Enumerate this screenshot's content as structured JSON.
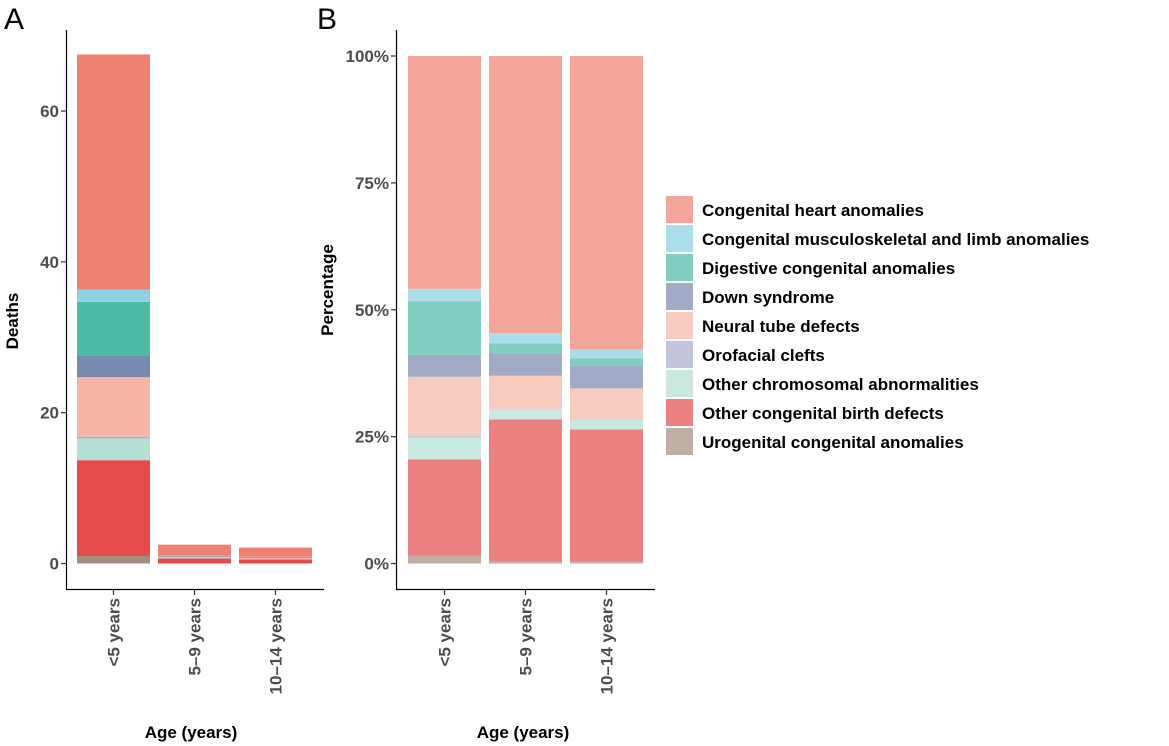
{
  "legend": [
    {
      "label": "Congenital heart anomalies",
      "color_a": "#EF8173",
      "color_b": "#F3A59A"
    },
    {
      "label": "Congenital musculoskeletal and limb anomalies",
      "color_a": "#8ED1E6",
      "color_b": "#ABDDEB"
    },
    {
      "label": "Digestive congenital anomalies",
      "color_a": "#4DBBA6",
      "color_b": "#80CFC1"
    },
    {
      "label": "Down syndrome",
      "color_a": "#7A89AF",
      "color_b": "#A1ABC6"
    },
    {
      "label": "Neural tube defects",
      "color_a": "#F6B6A6",
      "color_b": "#F8CBBF"
    },
    {
      "label": "Orofacial clefts",
      "color_a": "#A9AFCA",
      "color_b": "#C3C6DA"
    },
    {
      "label": "Other chromosomal abnormalities",
      "color_a": "#B3DFD4",
      "color_b": "#C9E8E0"
    },
    {
      "label": "Other congenital birth defects",
      "color_a": "#E64B4B",
      "color_b": "#EC8080"
    },
    {
      "label": "Urogenital congenital anomalies",
      "color_a": "#A68C80",
      "color_b": "#C0ADA3"
    }
  ],
  "chart_data": [
    {
      "panel": "A",
      "type": "bar",
      "stacked": true,
      "xlabel": "Age (years)",
      "ylabel": "Deaths",
      "ylim": [
        0,
        71
      ],
      "yticks": [
        0,
        20,
        40,
        60
      ],
      "ytick_labels": [
        "0",
        "20",
        "40",
        "60"
      ],
      "categories": [
        "<5 years",
        "5–9 years",
        "10–14 years"
      ],
      "series": [
        {
          "name": "Urogenital congenital anomalies",
          "values": [
            1.0,
            0.0,
            0.0
          ]
        },
        {
          "name": "Other congenital birth defects",
          "values": [
            12.7,
            0.7,
            0.55
          ]
        },
        {
          "name": "Other chromosomal abnormalities",
          "values": [
            2.9,
            0.05,
            0.05
          ]
        },
        {
          "name": "Orofacial clefts",
          "values": [
            0.2,
            0.0,
            0.0
          ]
        },
        {
          "name": "Neural tube defects",
          "values": [
            7.9,
            0.16,
            0.13
          ]
        },
        {
          "name": "Down syndrome",
          "values": [
            2.9,
            0.11,
            0.09
          ]
        },
        {
          "name": "Digestive congenital anomalies",
          "values": [
            7.1,
            0.05,
            0.03
          ]
        },
        {
          "name": "Congenital musculoskeletal and limb anomalies",
          "values": [
            1.6,
            0.05,
            0.04
          ]
        },
        {
          "name": "Congenital heart anomalies",
          "values": [
            31.2,
            1.38,
            1.22
          ]
        }
      ]
    },
    {
      "panel": "B",
      "type": "bar",
      "stacked": true,
      "normalized": true,
      "xlabel": "Age (years)",
      "ylabel": "Percentage",
      "ylim": [
        0,
        1.07
      ],
      "yticks": [
        0,
        0.25,
        0.5,
        0.75,
        1.0
      ],
      "ytick_labels": [
        "0%",
        "25%",
        "50%",
        "75%",
        "100%"
      ],
      "categories": [
        "<5 years",
        "5–9 years",
        "10–14 years"
      ],
      "series": [
        {
          "name": "Urogenital congenital anomalies",
          "values": [
            0.015,
            0.004,
            0.004
          ]
        },
        {
          "name": "Other congenital birth defects",
          "values": [
            0.19,
            0.28,
            0.26
          ]
        },
        {
          "name": "Other chromosomal abnormalities",
          "values": [
            0.043,
            0.02,
            0.02
          ]
        },
        {
          "name": "Orofacial clefts",
          "values": [
            0.003,
            0.001,
            0.001
          ]
        },
        {
          "name": "Neural tube defects",
          "values": [
            0.117,
            0.065,
            0.06
          ]
        },
        {
          "name": "Down syndrome",
          "values": [
            0.043,
            0.044,
            0.044
          ]
        },
        {
          "name": "Digestive congenital anomalies",
          "values": [
            0.106,
            0.02,
            0.015
          ]
        },
        {
          "name": "Congenital musculoskeletal and limb anomalies",
          "values": [
            0.024,
            0.02,
            0.018
          ]
        },
        {
          "name": "Congenital heart anomalies",
          "values": [
            0.459,
            0.546,
            0.578
          ]
        }
      ]
    }
  ]
}
